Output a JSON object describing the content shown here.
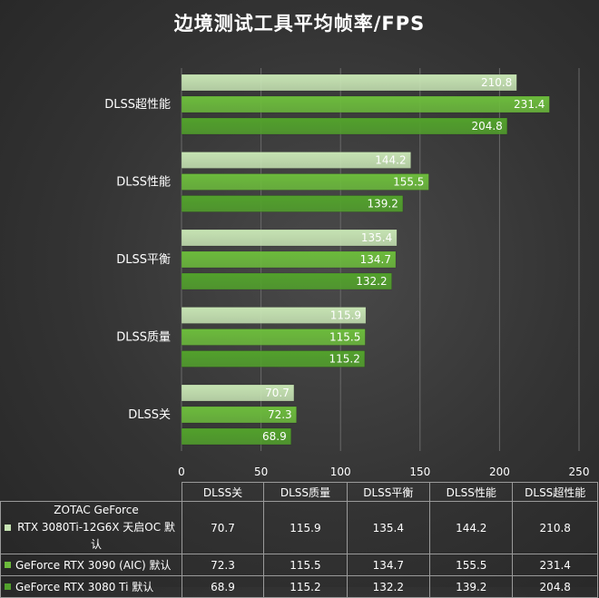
{
  "title": "边境测试工具平均帧率/FPS",
  "colors": {
    "series": [
      "#c6e3b3",
      "#6cbb3c",
      "#52a12c"
    ],
    "grid": "#6a6a6a"
  },
  "chart_data": {
    "type": "bar",
    "orientation": "horizontal",
    "title": "边境测试工具平均帧率/FPS",
    "categories": [
      "DLSS超性能",
      "DLSS性能",
      "DLSS平衡",
      "DLSS质量",
      "DLSS关"
    ],
    "xlim": [
      0,
      250
    ],
    "xticks": [
      "0",
      "50",
      "100",
      "150",
      "200",
      "250"
    ],
    "grid": true,
    "legend": "bottom-table",
    "series": [
      {
        "name": "ZOTAC GeForce RTX 3080Ti-12G6X 天启OC 默认",
        "values": [
          210.8,
          144.2,
          135.4,
          115.9,
          70.7
        ]
      },
      {
        "name": "GeForce RTX 3090 (AIC) 默认",
        "values": [
          231.4,
          155.5,
          134.7,
          115.5,
          72.3
        ]
      },
      {
        "name": "GeForce RTX 3080 Ti 默认",
        "values": [
          204.8,
          139.2,
          132.2,
          115.2,
          68.9
        ]
      }
    ]
  },
  "table": {
    "columns": [
      "DLSS关",
      "DLSS质量",
      "DLSS平衡",
      "DLSS性能",
      "DLSS超性能"
    ],
    "rows": [
      {
        "name_line1": "ZOTAC GeForce",
        "name_line2": "RTX 3080Ti-12G6X 天启OC 默认",
        "values": [
          "70.7",
          "115.9",
          "135.4",
          "144.2",
          "210.8"
        ]
      },
      {
        "name": "GeForce RTX 3090 (AIC) 默认",
        "values": [
          "72.3",
          "115.5",
          "134.7",
          "155.5",
          "231.4"
        ]
      },
      {
        "name": "GeForce RTX 3080 Ti 默认",
        "values": [
          "68.9",
          "115.2",
          "132.2",
          "139.2",
          "204.8"
        ]
      }
    ]
  }
}
